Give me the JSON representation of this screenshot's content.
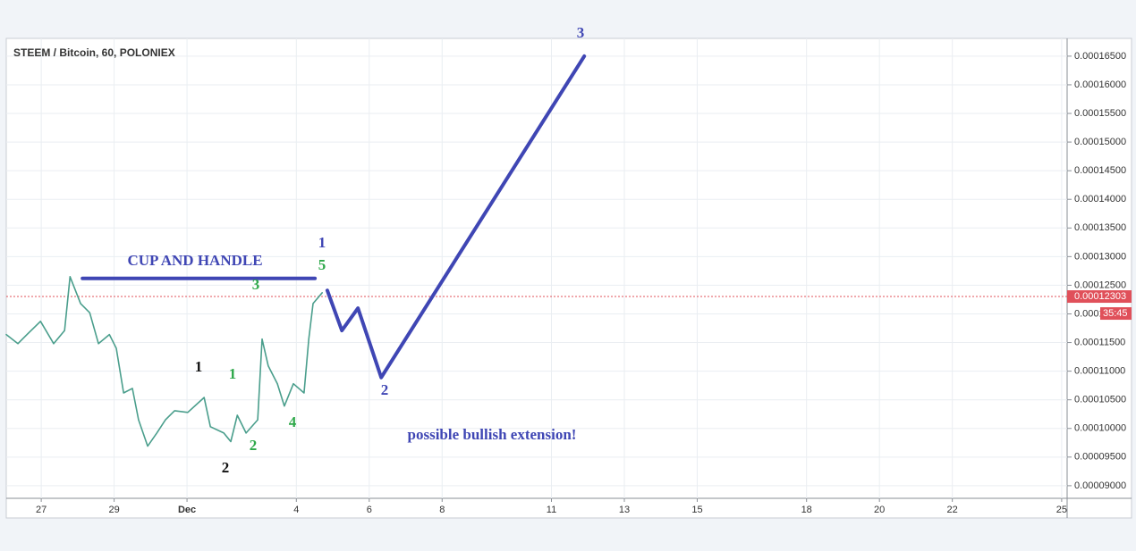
{
  "chart_data": {
    "type": "line",
    "title": "STEEM / Bitcoin, 60, POLONIEX",
    "xlim": [
      -0.96,
      28.15
    ],
    "ylim": [
      8.78e-05,
      0.0001681
    ],
    "grid": true,
    "xticks": [
      {
        "value": 0,
        "label": "27"
      },
      {
        "value": 2,
        "label": "29"
      },
      {
        "value": 4,
        "label": "Dec"
      },
      {
        "value": 7,
        "label": "4"
      },
      {
        "value": 9,
        "label": "6"
      },
      {
        "value": 11,
        "label": "8"
      },
      {
        "value": 14,
        "label": "11"
      },
      {
        "value": 16,
        "label": "13"
      },
      {
        "value": 18,
        "label": "15"
      },
      {
        "value": 21,
        "label": "18"
      },
      {
        "value": 23,
        "label": "20"
      },
      {
        "value": 25,
        "label": "22"
      },
      {
        "value": 28,
        "label": "25"
      }
    ],
    "yticks": [
      {
        "value": 9e-05,
        "label": "0.00009000"
      },
      {
        "value": 9.5e-05,
        "label": "0.00009500"
      },
      {
        "value": 0.0001,
        "label": "0.00010000"
      },
      {
        "value": 0.000105,
        "label": "0.00010500"
      },
      {
        "value": 0.00011,
        "label": "0.00011000"
      },
      {
        "value": 0.000115,
        "label": "0.00011500"
      },
      {
        "value": 0.00012,
        "label": "0.00012000"
      },
      {
        "value": 0.000125,
        "label": "0.00012500"
      },
      {
        "value": 0.00013,
        "label": "0.00013000"
      },
      {
        "value": 0.000135,
        "label": "0.00013500"
      },
      {
        "value": 0.00014,
        "label": "0.00014000"
      },
      {
        "value": 0.000145,
        "label": "0.00014500"
      },
      {
        "value": 0.00015,
        "label": "0.00015000"
      },
      {
        "value": 0.000155,
        "label": "0.00015500"
      },
      {
        "value": 0.00016,
        "label": "0.00016000"
      },
      {
        "value": 0.000165,
        "label": "0.00016500"
      }
    ],
    "series": [
      {
        "color": "#4a9e8c",
        "width": 1.6,
        "x": [
          -0.96,
          -0.64,
          -0.39,
          -0.02,
          0.34,
          0.64,
          0.79,
          1.08,
          1.33,
          1.57,
          1.87,
          2.06,
          2.26,
          2.5,
          2.67,
          2.92,
          3.17,
          3.41,
          3.66,
          4.02,
          4.47,
          4.64,
          5.01,
          5.2,
          5.38,
          5.62,
          5.94,
          6.06,
          6.23,
          6.48,
          6.67,
          6.92,
          7.21,
          7.34,
          7.46,
          7.71
        ],
        "values": [
          0.0001164,
          0.0001148,
          0.0001164,
          0.0001187,
          0.0001148,
          0.0001171,
          0.0001265,
          0.0001218,
          0.0001202,
          0.0001148,
          0.0001164,
          0.000114,
          0.0001062,
          0.000107,
          0.0001015,
          9.69e-05,
          9.92e-05,
          0.0001015,
          0.0001031,
          0.0001028,
          0.0001054,
          0.0001003,
          9.92e-05,
          9.77e-05,
          0.0001023,
          9.92e-05,
          0.0001015,
          0.0001156,
          0.0001109,
          0.0001078,
          0.0001039,
          0.0001078,
          0.0001062,
          0.0001156,
          0.0001218,
          0.0001237
        ]
      },
      {
        "color": "#3f46b4",
        "width": 4,
        "x": [
          1.13,
          7.51
        ],
        "values": [
          0.0001262,
          0.0001262
        ]
      },
      {
        "color": "#3f46b4",
        "width": 4,
        "x": [
          7.85,
          8.25,
          8.69,
          9.33,
          14.9
        ],
        "values": [
          0.0001241,
          0.0001171,
          0.000121,
          0.0001089,
          0.000165
        ]
      }
    ],
    "current_price": {
      "value": 0.00012303,
      "label": "0.00012303",
      "color": "#e0505a"
    },
    "countdown": "35:45",
    "annotations": [
      {
        "text": "CUP AND HANDLE",
        "color": "#3f46b4"
      },
      {
        "text": "1",
        "color": "#111111"
      },
      {
        "text": "2",
        "color": "#111111"
      },
      {
        "text": "1",
        "color": "#2ea84a"
      },
      {
        "text": "2",
        "color": "#2ea84a"
      },
      {
        "text": "3",
        "color": "#2ea84a"
      },
      {
        "text": "4",
        "color": "#2ea84a"
      },
      {
        "text": "5",
        "color": "#2ea84a"
      },
      {
        "text": "1",
        "color": "#3f46b4"
      },
      {
        "text": "2",
        "color": "#3f46b4"
      },
      {
        "text": "3",
        "color": "#3f46b4"
      },
      {
        "text": "possible bullish extension!",
        "color": "#3f46b4"
      }
    ]
  }
}
